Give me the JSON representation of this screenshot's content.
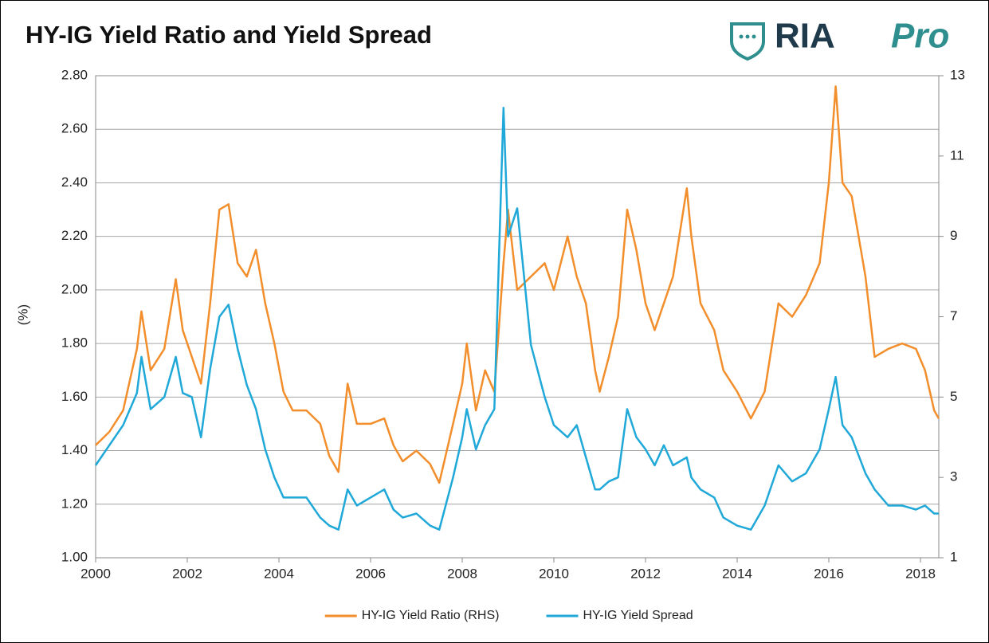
{
  "chart_data": {
    "type": "line",
    "title": "HY-IG Yield Ratio and Yield Spread",
    "logo": {
      "main": "RIA",
      "accent": "Pro"
    },
    "ylabel": "(%)",
    "x": [
      2000.0,
      2000.3,
      2000.6,
      2000.9,
      2001.0,
      2001.2,
      2001.5,
      2001.75,
      2001.9,
      2002.1,
      2002.3,
      2002.5,
      2002.7,
      2002.9,
      2003.1,
      2003.3,
      2003.5,
      2003.7,
      2003.9,
      2004.1,
      2004.3,
      2004.6,
      2004.9,
      2005.1,
      2005.3,
      2005.5,
      2005.7,
      2006.0,
      2006.3,
      2006.5,
      2006.7,
      2007.0,
      2007.3,
      2007.5,
      2007.8,
      2008.0,
      2008.1,
      2008.3,
      2008.5,
      2008.7,
      2008.9,
      2009.0,
      2009.2,
      2009.5,
      2009.8,
      2010.0,
      2010.3,
      2010.5,
      2010.7,
      2010.9,
      2011.0,
      2011.2,
      2011.4,
      2011.6,
      2011.8,
      2012.0,
      2012.2,
      2012.4,
      2012.6,
      2012.9,
      2013.0,
      2013.2,
      2013.5,
      2013.7,
      2014.0,
      2014.3,
      2014.6,
      2014.9,
      2015.2,
      2015.5,
      2015.8,
      2016.0,
      2016.15,
      2016.3,
      2016.5,
      2016.8,
      2017.0,
      2017.3,
      2017.6,
      2017.9,
      2018.1,
      2018.3,
      2018.4
    ],
    "series": [
      {
        "name": "HY-IG Yield Ratio (RHS)",
        "color": "#f28e2b",
        "axis": "y",
        "values": [
          1.42,
          1.47,
          1.55,
          1.78,
          1.92,
          1.7,
          1.78,
          2.04,
          1.85,
          1.75,
          1.65,
          1.95,
          2.3,
          2.32,
          2.1,
          2.05,
          2.15,
          1.95,
          1.8,
          1.62,
          1.55,
          1.55,
          1.5,
          1.38,
          1.32,
          1.65,
          1.5,
          1.5,
          1.52,
          1.42,
          1.36,
          1.4,
          1.35,
          1.28,
          1.5,
          1.65,
          1.8,
          1.55,
          1.7,
          1.62,
          2.1,
          2.3,
          2.0,
          2.05,
          2.1,
          2.0,
          2.2,
          2.05,
          1.95,
          1.7,
          1.62,
          1.75,
          1.9,
          2.3,
          2.15,
          1.95,
          1.85,
          1.95,
          2.05,
          2.38,
          2.2,
          1.95,
          1.85,
          1.7,
          1.62,
          1.52,
          1.62,
          1.95,
          1.9,
          1.98,
          2.1,
          2.4,
          2.76,
          2.4,
          2.35,
          2.05,
          1.75,
          1.78,
          1.8,
          1.78,
          1.7,
          1.55,
          1.52
        ]
      },
      {
        "name": "HY-IG Yield Spread",
        "color": "#1fa8d8",
        "axis": "y2",
        "values": [
          3.3,
          3.8,
          4.3,
          5.1,
          6.0,
          4.7,
          5.0,
          6.0,
          5.1,
          5.0,
          4.0,
          5.7,
          7.0,
          7.3,
          6.2,
          5.3,
          4.7,
          3.7,
          3.0,
          2.5,
          2.5,
          2.5,
          2.0,
          1.8,
          1.7,
          2.7,
          2.3,
          2.5,
          2.7,
          2.2,
          2.0,
          2.1,
          1.8,
          1.7,
          3.0,
          4.0,
          4.7,
          3.7,
          4.3,
          4.7,
          12.2,
          9.0,
          9.7,
          6.3,
          5.0,
          4.3,
          4.0,
          4.3,
          3.5,
          2.7,
          2.7,
          2.9,
          3.0,
          4.7,
          4.0,
          3.7,
          3.3,
          3.8,
          3.3,
          3.5,
          3.0,
          2.7,
          2.5,
          2.0,
          1.8,
          1.7,
          2.3,
          3.3,
          2.9,
          3.1,
          3.7,
          4.7,
          5.5,
          4.3,
          4.0,
          3.1,
          2.7,
          2.3,
          2.3,
          2.2,
          2.3,
          2.1,
          2.1
        ]
      }
    ],
    "xlim": [
      2000,
      2018.4
    ],
    "xticks": [
      2000,
      2002,
      2004,
      2006,
      2008,
      2010,
      2012,
      2014,
      2016,
      2018
    ],
    "ylim": [
      1.0,
      2.8
    ],
    "yticks": [
      {
        "value": 1.0,
        "label": "1.00"
      },
      {
        "value": 1.2,
        "label": "1.20"
      },
      {
        "value": 1.4,
        "label": "1.40"
      },
      {
        "value": 1.6,
        "label": "1.60"
      },
      {
        "value": 1.8,
        "label": "1.80"
      },
      {
        "value": 2.0,
        "label": "2.00"
      },
      {
        "value": 2.2,
        "label": "2.20"
      },
      {
        "value": 2.4,
        "label": "2.40"
      },
      {
        "value": 2.6,
        "label": "2.60"
      },
      {
        "value": 2.8,
        "label": "2.80"
      }
    ],
    "y2lim": [
      1,
      13
    ],
    "y2ticks": [
      1,
      3,
      5,
      7,
      9,
      11,
      13
    ],
    "grid": true,
    "legend": "bottom"
  }
}
